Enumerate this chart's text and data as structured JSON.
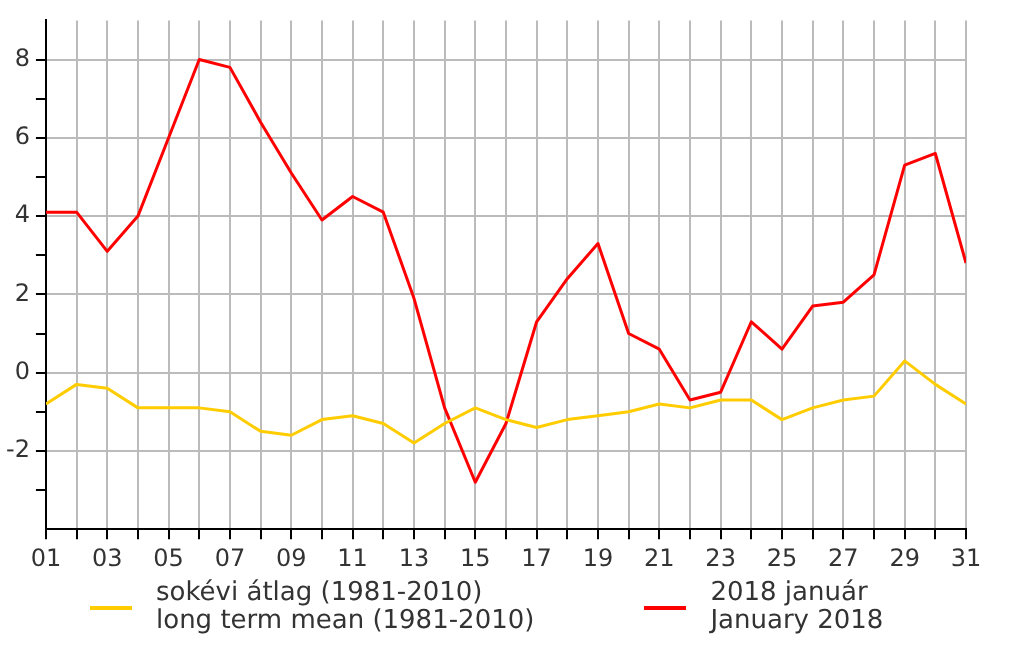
{
  "chart_data": {
    "type": "line",
    "x": [
      1,
      2,
      3,
      4,
      5,
      6,
      7,
      8,
      9,
      10,
      11,
      12,
      13,
      14,
      15,
      16,
      17,
      18,
      19,
      20,
      21,
      22,
      23,
      24,
      25,
      26,
      27,
      28,
      29,
      30,
      31
    ],
    "series": [
      {
        "name": "sokévi átlag (1981-2010)\nlong term mean (1981-2010)",
        "color": "#ffcc00",
        "values": [
          -0.8,
          -0.3,
          -0.4,
          -0.9,
          -0.9,
          -0.9,
          -1.0,
          -1.5,
          -1.6,
          -1.2,
          -1.1,
          -1.3,
          -1.8,
          -1.3,
          -0.9,
          -1.2,
          -1.4,
          -1.2,
          -1.1,
          -1.0,
          -0.8,
          -0.9,
          -0.7,
          -0.7,
          -1.2,
          -0.9,
          -0.7,
          -0.6,
          0.3,
          -0.3,
          -0.8
        ]
      },
      {
        "name": "2018 január\nJanuary 2018",
        "color": "#ff0000",
        "values": [
          4.1,
          4.1,
          3.1,
          4.0,
          6.0,
          8.0,
          7.8,
          6.4,
          5.1,
          3.9,
          4.5,
          4.1,
          1.9,
          -0.9,
          -2.8,
          -1.3,
          1.3,
          2.4,
          3.3,
          1.0,
          0.6,
          -0.7,
          -0.5,
          1.3,
          0.6,
          1.7,
          1.8,
          2.5,
          5.3,
          5.6,
          2.8
        ]
      }
    ],
    "xlim": [
      1,
      31
    ],
    "xticks": [
      {
        "value": 1,
        "label": "01"
      },
      {
        "value": 2,
        "label": null
      },
      {
        "value": 3,
        "label": "03"
      },
      {
        "value": 4,
        "label": null
      },
      {
        "value": 5,
        "label": "05"
      },
      {
        "value": 6,
        "label": null
      },
      {
        "value": 7,
        "label": "07"
      },
      {
        "value": 8,
        "label": null
      },
      {
        "value": 9,
        "label": "09"
      },
      {
        "value": 10,
        "label": null
      },
      {
        "value": 11,
        "label": "11"
      },
      {
        "value": 12,
        "label": null
      },
      {
        "value": 13,
        "label": "13"
      },
      {
        "value": 14,
        "label": null
      },
      {
        "value": 15,
        "label": "15"
      },
      {
        "value": 16,
        "label": null
      },
      {
        "value": 17,
        "label": "17"
      },
      {
        "value": 18,
        "label": null
      },
      {
        "value": 19,
        "label": "19"
      },
      {
        "value": 20,
        "label": null
      },
      {
        "value": 21,
        "label": "21"
      },
      {
        "value": 22,
        "label": null
      },
      {
        "value": 23,
        "label": "23"
      },
      {
        "value": 24,
        "label": null
      },
      {
        "value": 25,
        "label": "25"
      },
      {
        "value": 26,
        "label": null
      },
      {
        "value": 27,
        "label": "27"
      },
      {
        "value": 28,
        "label": null
      },
      {
        "value": 29,
        "label": "29"
      },
      {
        "value": 30,
        "label": null
      },
      {
        "value": 31,
        "label": "31"
      }
    ],
    "ylim": [
      -4,
      9
    ],
    "yticks": [
      {
        "value": -3,
        "label": null
      },
      -2,
      {
        "value": -1,
        "label": null
      },
      0,
      {
        "value": 1,
        "label": null
      },
      2,
      {
        "value": 3,
        "label": null
      },
      4,
      {
        "value": 5,
        "label": null
      },
      6,
      {
        "value": 7,
        "label": null
      },
      8
    ],
    "grid": true,
    "legend": "bottom",
    "marker": "none",
    "line_style": "solid"
  }
}
